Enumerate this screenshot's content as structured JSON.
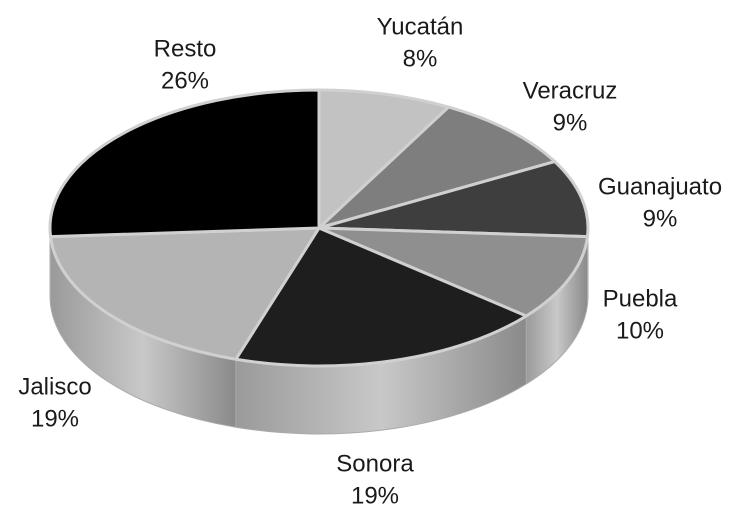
{
  "chart_data": {
    "type": "pie3d",
    "categories": [
      "Yucatán",
      "Veracruz",
      "Guanajuato",
      "Puebla",
      "Sonora",
      "Jalisco",
      "Resto"
    ],
    "values": [
      8,
      9,
      9,
      10,
      19,
      19,
      26
    ],
    "value_labels": [
      "8%",
      "9%",
      "9%",
      "10%",
      "19%",
      "19%",
      "26%"
    ],
    "colors": [
      "#c2c2c2",
      "#7e7e7e",
      "#3e3e3e",
      "#8f8f8f",
      "#1e1e1e",
      "#b4b4b4",
      "#000000"
    ]
  }
}
